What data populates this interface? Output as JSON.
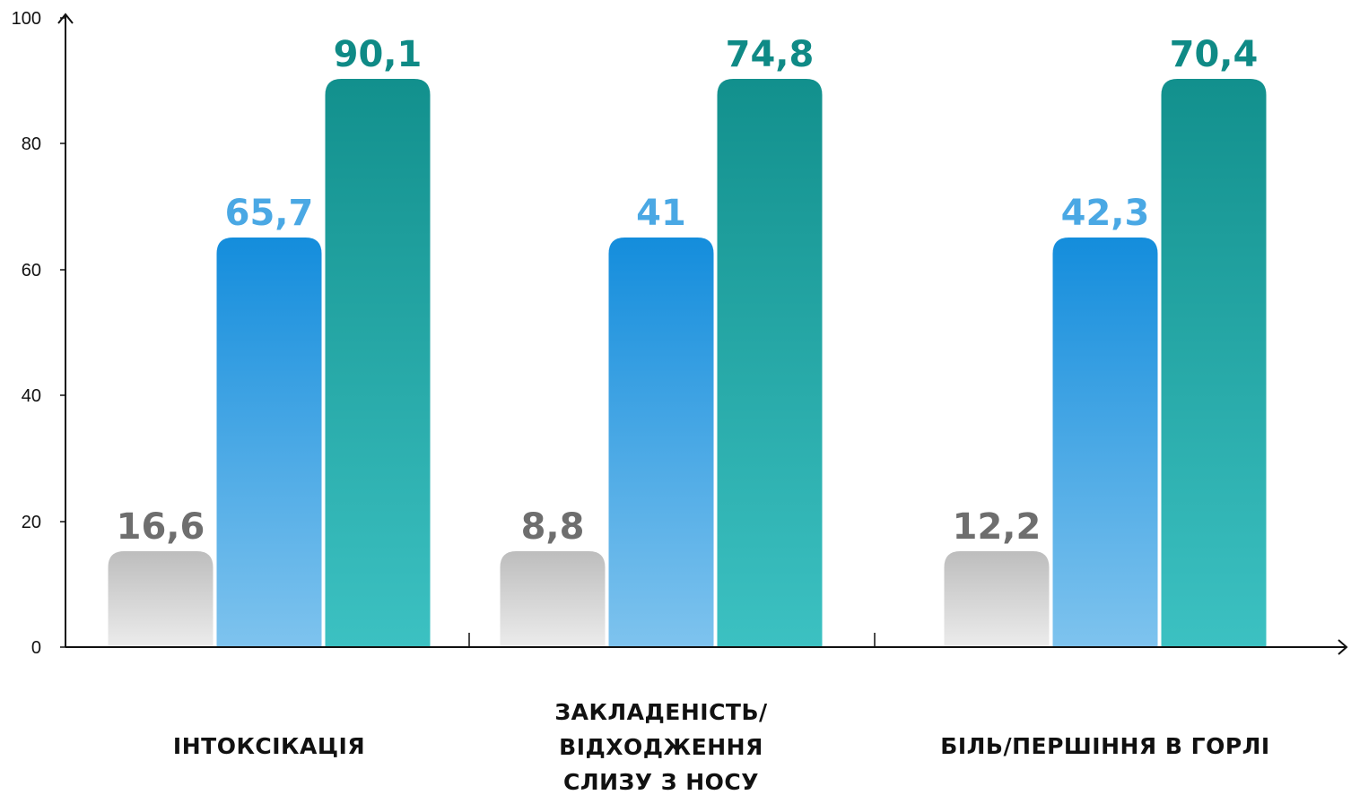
{
  "chart_data": {
    "type": "bar",
    "ylim": [
      0,
      100
    ],
    "yticks": [
      "0",
      "20",
      "40",
      "60",
      "80",
      "100"
    ],
    "categories": [
      {
        "lines": [
          "ІНТОКСІКАЦІЯ"
        ]
      },
      {
        "lines": [
          "ЗАКЛАДЕНІСТЬ/",
          "ВІДХОДЖЕННЯ",
          "СЛИЗУ З НОСУ"
        ]
      },
      {
        "lines": [
          "БІЛЬ/ПЕРШІННЯ В ГОРЛІ"
        ]
      }
    ],
    "series": [
      {
        "values": [
          16.6,
          8.8,
          12.2
        ],
        "labels": [
          "16,6",
          "8,8",
          "12,2"
        ],
        "color": "#6e6e6e",
        "gradient": [
          "#bdbdbd",
          "#ececec"
        ]
      },
      {
        "values": [
          65.7,
          41,
          42.3
        ],
        "labels": [
          "65,7",
          "41",
          "42,3"
        ],
        "color": "#4aa8e4",
        "gradient": [
          "#148ddc",
          "#7ec3ee"
        ]
      },
      {
        "values": [
          90.1,
          74.8,
          70.4
        ],
        "labels": [
          "90,1",
          "74,8",
          "70,4"
        ],
        "color": "#0f8a86",
        "gradient": [
          "#12908d",
          "#3cc1c2"
        ]
      }
    ],
    "grid": false,
    "legend": "none"
  }
}
